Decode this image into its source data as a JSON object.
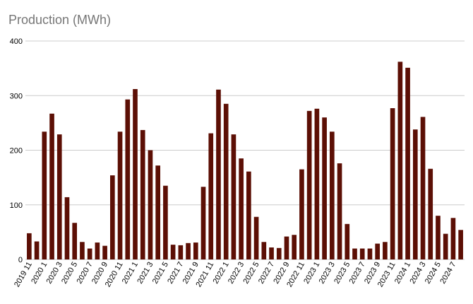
{
  "chart_data": {
    "type": "bar",
    "title": "Production (MWh)",
    "xlabel": "",
    "ylabel": "",
    "ylim": [
      0,
      400
    ],
    "yticks": [
      0,
      100,
      200,
      300,
      400
    ],
    "grid": true,
    "bar_color": "#5c0f05",
    "categories": [
      "2019 11",
      "2019 12",
      "2020 1",
      "2020 2",
      "2020 3",
      "2020 4",
      "2020 5",
      "2020 6",
      "2020 7",
      "2020 8",
      "2020 9",
      "2020 10",
      "2020 11",
      "2020 12",
      "2021 1",
      "2021 2",
      "2021 3",
      "2021 4",
      "2021 5",
      "2021 6",
      "2021 7",
      "2021 8",
      "2021 9",
      "2021 10",
      "2021 11",
      "2021 12",
      "2022 1",
      "2022 2",
      "2022 3",
      "2022 4",
      "2022 5",
      "2022 6",
      "2022 7",
      "2022 8",
      "2022 9",
      "2022 10",
      "2022 11",
      "2022 12",
      "2023 1",
      "2023 2",
      "2023 3",
      "2023 4",
      "2023 5",
      "2023 6",
      "2023 7",
      "2023 8",
      "2023 9",
      "2023 10",
      "2023 11",
      "2023 12",
      "2024 1",
      "2024 2",
      "2024 3",
      "2024 4",
      "2024 5",
      "2024 6",
      "2024 7",
      "2024 8"
    ],
    "tick_labels": [
      "2019 11",
      "2020 1",
      "2020 3",
      "2020 5",
      "2020 7",
      "2020 9",
      "2020 11",
      "2021 1",
      "2021 3",
      "2021 5",
      "2021 7",
      "2021 9",
      "2021 11",
      "2022 1",
      "2022 3",
      "2022 5",
      "2022 7",
      "2022 9",
      "2022 11",
      "2023 1",
      "2023 3",
      "2023 5",
      "2023 7",
      "2023 9",
      "2023 11",
      "2024 1",
      "2024 3",
      "2024 5",
      "2024 7"
    ],
    "values": [
      48,
      33,
      234,
      267,
      229,
      114,
      67,
      32,
      20,
      31,
      25,
      154,
      234,
      293,
      312,
      237,
      200,
      172,
      135,
      27,
      26,
      30,
      31,
      133,
      231,
      311,
      285,
      229,
      185,
      161,
      78,
      32,
      22,
      21,
      42,
      45,
      165,
      272,
      276,
      260,
      234,
      176,
      65,
      20,
      20,
      20,
      29,
      32,
      277,
      362,
      351,
      238,
      261,
      166,
      80,
      47,
      76,
      54
    ]
  }
}
